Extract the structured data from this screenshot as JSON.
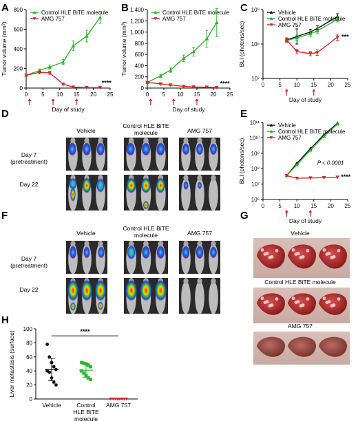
{
  "panels": {
    "a": "A",
    "b": "B",
    "c": "C",
    "d": "D",
    "e": "E",
    "f": "F",
    "g": "G",
    "h": "H"
  },
  "colors": {
    "control": "#2db42d",
    "amg": "#d42a2a",
    "vehicle": "#111111",
    "arrow": "#d42a2a"
  },
  "panelD": {
    "cols": [
      "Vehicle",
      "Control HLE BiTE molecule",
      "AMG 757"
    ],
    "rows": [
      "Day 7 (pretreatment)",
      "Day 22"
    ]
  },
  "panelF": {
    "cols": [
      "Vehicle",
      "Control HLE BiTE molecule",
      "AMG 757"
    ],
    "rows": [
      "Day 7 (pretreatment)",
      "Day 22"
    ]
  },
  "panelG": {
    "labels": [
      "Vehicle",
      "Control HLE BiTE molecule",
      "AMG 757"
    ]
  },
  "chart_data": [
    {
      "id": "A",
      "type": "line",
      "xlabel": "Day of study",
      "ylabel": "Tumor volume (mm³)",
      "xlim": [
        0,
        25
      ],
      "ylim": [
        0,
        800
      ],
      "xticks": [
        "0",
        "5",
        "10",
        "15",
        "20",
        "25"
      ],
      "yticks": [
        "0",
        "200",
        "400",
        "600",
        "800"
      ],
      "legend": "top-left",
      "annotation": "****",
      "dosing_days": [
        1,
        8,
        15
      ],
      "series": [
        {
          "name": "Control HLE BiTE molecule",
          "color": "#2db42d",
          "marker": "triangle",
          "x": [
            0,
            4,
            7,
            11,
            14,
            18,
            22
          ],
          "y": [
            130,
            180,
            215,
            265,
            430,
            530,
            720
          ],
          "err": [
            10,
            15,
            20,
            25,
            50,
            60,
            60
          ]
        },
        {
          "name": "AMG 757",
          "color": "#d42a2a",
          "marker": "triangle-down",
          "x": [
            0,
            4,
            7,
            11,
            14,
            18,
            22
          ],
          "y": [
            130,
            160,
            155,
            40,
            10,
            5,
            5
          ],
          "err": [
            10,
            15,
            15,
            10,
            5,
            3,
            3
          ]
        }
      ]
    },
    {
      "id": "B",
      "type": "line",
      "xlabel": "Day of study",
      "ylabel": "Tumor volume (mm³)",
      "xlim": [
        0,
        25
      ],
      "ylim": [
        0,
        1400
      ],
      "xticks": [
        "0",
        "5",
        "10",
        "15",
        "20",
        "25"
      ],
      "yticks": [
        "0",
        "200",
        "400",
        "600",
        "800",
        "1,000",
        "1,200",
        "1,400"
      ],
      "legend": "top-left",
      "annotation": "****",
      "dosing_days": [
        1,
        8,
        15
      ],
      "series": [
        {
          "name": "Control HLE BiTE molecule",
          "color": "#2db42d",
          "marker": "triangle",
          "x": [
            0,
            4,
            7,
            11,
            14,
            18,
            21
          ],
          "y": [
            100,
            220,
            320,
            530,
            650,
            880,
            1170
          ],
          "err": [
            15,
            30,
            40,
            60,
            80,
            150,
            250
          ]
        },
        {
          "name": "AMG 757",
          "color": "#d42a2a",
          "marker": "triangle-down",
          "x": [
            0,
            4,
            7,
            11,
            14,
            18,
            21
          ],
          "y": [
            100,
            75,
            55,
            30,
            20,
            15,
            10
          ],
          "err": [
            10,
            10,
            10,
            8,
            5,
            5,
            5
          ]
        }
      ]
    },
    {
      "id": "C",
      "type": "line",
      "xlabel": "Day of study",
      "ylabel": "BLI (photons/sec)",
      "xlim": [
        0,
        25
      ],
      "ylim_log10": [
        7,
        9
      ],
      "xticks": [
        "0",
        "5",
        "10",
        "15",
        "20",
        "25"
      ],
      "yticks": [
        "10⁷",
        "10⁸",
        "10⁹"
      ],
      "legend": "top-left",
      "annotation": "***",
      "dosing_days": [
        7,
        15
      ],
      "series": [
        {
          "name": "Vehicle",
          "color": "#111111",
          "marker": "triangle",
          "x": [
            7,
            10,
            14,
            16,
            22
          ],
          "y_log10": [
            8.12,
            8.22,
            8.35,
            8.45,
            8.8
          ],
          "err_log10": [
            0.06,
            0.22,
            0.08,
            0.08,
            0.08
          ]
        },
        {
          "name": "Control HLE BiTE molecule",
          "color": "#2db42d",
          "marker": "triangle",
          "x": [
            7,
            10,
            14,
            16,
            22
          ],
          "y_log10": [
            8.1,
            8.18,
            8.3,
            8.38,
            8.72
          ],
          "err_log10": [
            0.06,
            0.08,
            0.08,
            0.08,
            0.08
          ]
        },
        {
          "name": "AMG 757",
          "color": "#d42a2a",
          "marker": "triangle-down",
          "x": [
            7,
            10,
            14,
            16,
            22
          ],
          "y_log10": [
            8.12,
            7.78,
            7.72,
            7.75,
            8.2
          ],
          "err_log10": [
            0.06,
            0.07,
            0.06,
            0.08,
            0.09
          ]
        }
      ]
    },
    {
      "id": "E",
      "type": "line",
      "xlabel": "Day of study",
      "ylabel": "BLI (photons/sec)",
      "xlim": [
        0,
        25
      ],
      "ylim_log10": [
        6,
        11
      ],
      "xticks": [
        "0",
        "5",
        "10",
        "15",
        "20",
        "25"
      ],
      "yticks": [
        "10⁶",
        "10⁷",
        "10⁸",
        "10⁹",
        "10¹⁰",
        "10¹¹"
      ],
      "legend": "top-left",
      "annotation_p": "P < 0.0001",
      "annotation": "****",
      "dosing_days": [
        7,
        14
      ],
      "series": [
        {
          "name": "Vehicle",
          "color": "#111111",
          "marker": "triangle",
          "x": [
            7,
            10,
            14,
            18,
            22
          ],
          "y_log10": [
            7.55,
            8.35,
            9.3,
            10.2,
            10.95
          ]
        },
        {
          "name": "Control HLE BiTE molecule",
          "color": "#2db42d",
          "marker": "triangle",
          "x": [
            7,
            10,
            14,
            18,
            22
          ],
          "y_log10": [
            7.55,
            8.25,
            9.2,
            10.1,
            10.9
          ]
        },
        {
          "name": "AMG 757",
          "color": "#d42a2a",
          "marker": "triangle-down",
          "x": [
            7,
            10,
            14,
            18,
            22
          ],
          "y_log10": [
            7.55,
            7.38,
            7.4,
            7.42,
            7.45
          ]
        }
      ]
    },
    {
      "id": "H",
      "type": "scatter",
      "ylabel": "Liver metastasis (surface)",
      "ylim": [
        0,
        100
      ],
      "yticks": [
        "0",
        "20",
        "40",
        "60",
        "80",
        "100"
      ],
      "categories": [
        "Vehicle",
        "Control HLE BiTE molecule",
        "AMG 757"
      ],
      "annotation": "****",
      "groups": [
        {
          "color": "#111111",
          "marker": "circle",
          "values": [
            78,
            60,
            52,
            46,
            42,
            40,
            38,
            30,
            24,
            20
          ],
          "mean": 42,
          "sd": 16
        },
        {
          "color": "#2db42d",
          "marker": "square",
          "values": [
            52,
            51,
            50,
            48,
            46,
            40,
            37,
            33,
            30,
            28
          ],
          "mean": 41,
          "sd": 10
        },
        {
          "color": "#d42a2a",
          "marker": "triangle-down",
          "values": [
            0,
            0,
            0,
            0,
            0,
            0,
            0,
            0,
            0,
            0
          ],
          "mean": 0,
          "sd": 0
        }
      ]
    }
  ]
}
